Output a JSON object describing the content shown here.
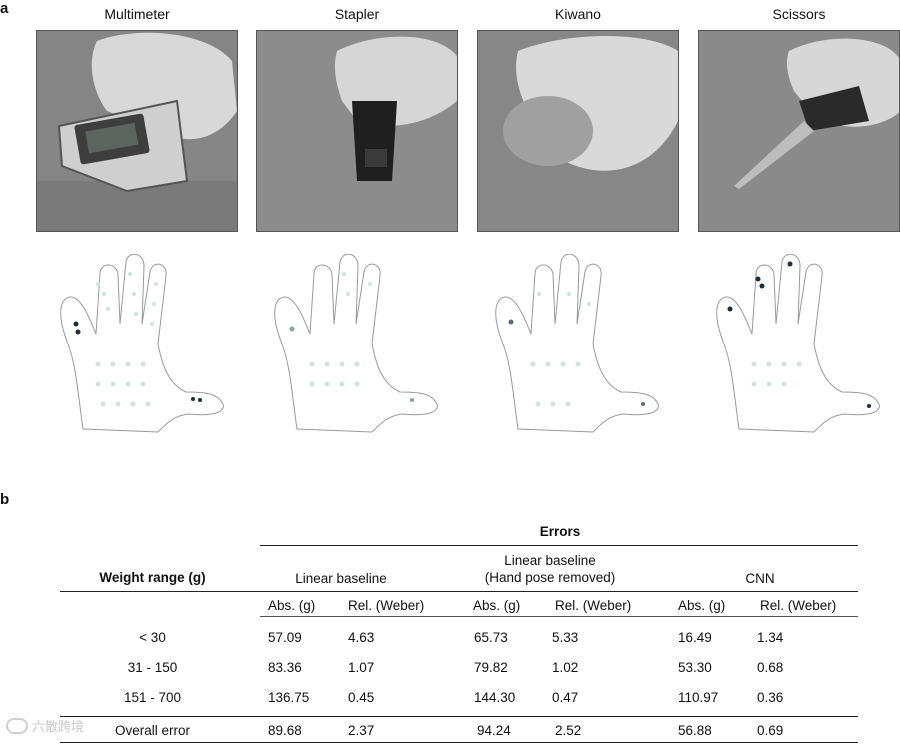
{
  "panel_a": {
    "letter": "a",
    "objects": [
      {
        "label": "Multimeter"
      },
      {
        "label": "Stapler"
      },
      {
        "label": "Kiwano"
      },
      {
        "label": "Scissors"
      }
    ]
  },
  "panel_b": {
    "letter": "b",
    "errors_header": "Errors",
    "row_header": "Weight range  (g)",
    "groups": [
      {
        "label": "Linear baseline"
      },
      {
        "label_line1": "Linear baseline",
        "label_line2": "(Hand pose removed)"
      },
      {
        "label": "CNN"
      }
    ],
    "subheaders": [
      "Abs. (g)",
      "Rel. (Weber)",
      "Abs. (g)",
      "Rel. (Weber)",
      "Abs. (g)",
      "Rel. (Weber)"
    ],
    "rows": [
      {
        "range": "< 30",
        "values": [
          "57.09",
          "4.63",
          "65.73",
          "5.33",
          "16.49",
          "1.34"
        ]
      },
      {
        "range": "31 - 150",
        "values": [
          "83.36",
          "1.07",
          "79.82",
          "1.02",
          "53.30",
          "0.68"
        ]
      },
      {
        "range": "151 - 700",
        "values": [
          "136.75",
          "0.45",
          "144.30",
          "0.47",
          "110.97",
          "0.36"
        ]
      },
      {
        "range": "Overall error",
        "values": [
          "89.68",
          "2.37",
          "94.24",
          "2.52",
          "56.88",
          "0.69"
        ]
      }
    ]
  },
  "watermark": {
    "text": "六散跨境"
  },
  "colors": {
    "sensor_light": "#cfe3df",
    "sensor_mid": "#7fa9a8",
    "sensor_dark": "#1f2d3a",
    "outline": "#9a9a9a"
  }
}
